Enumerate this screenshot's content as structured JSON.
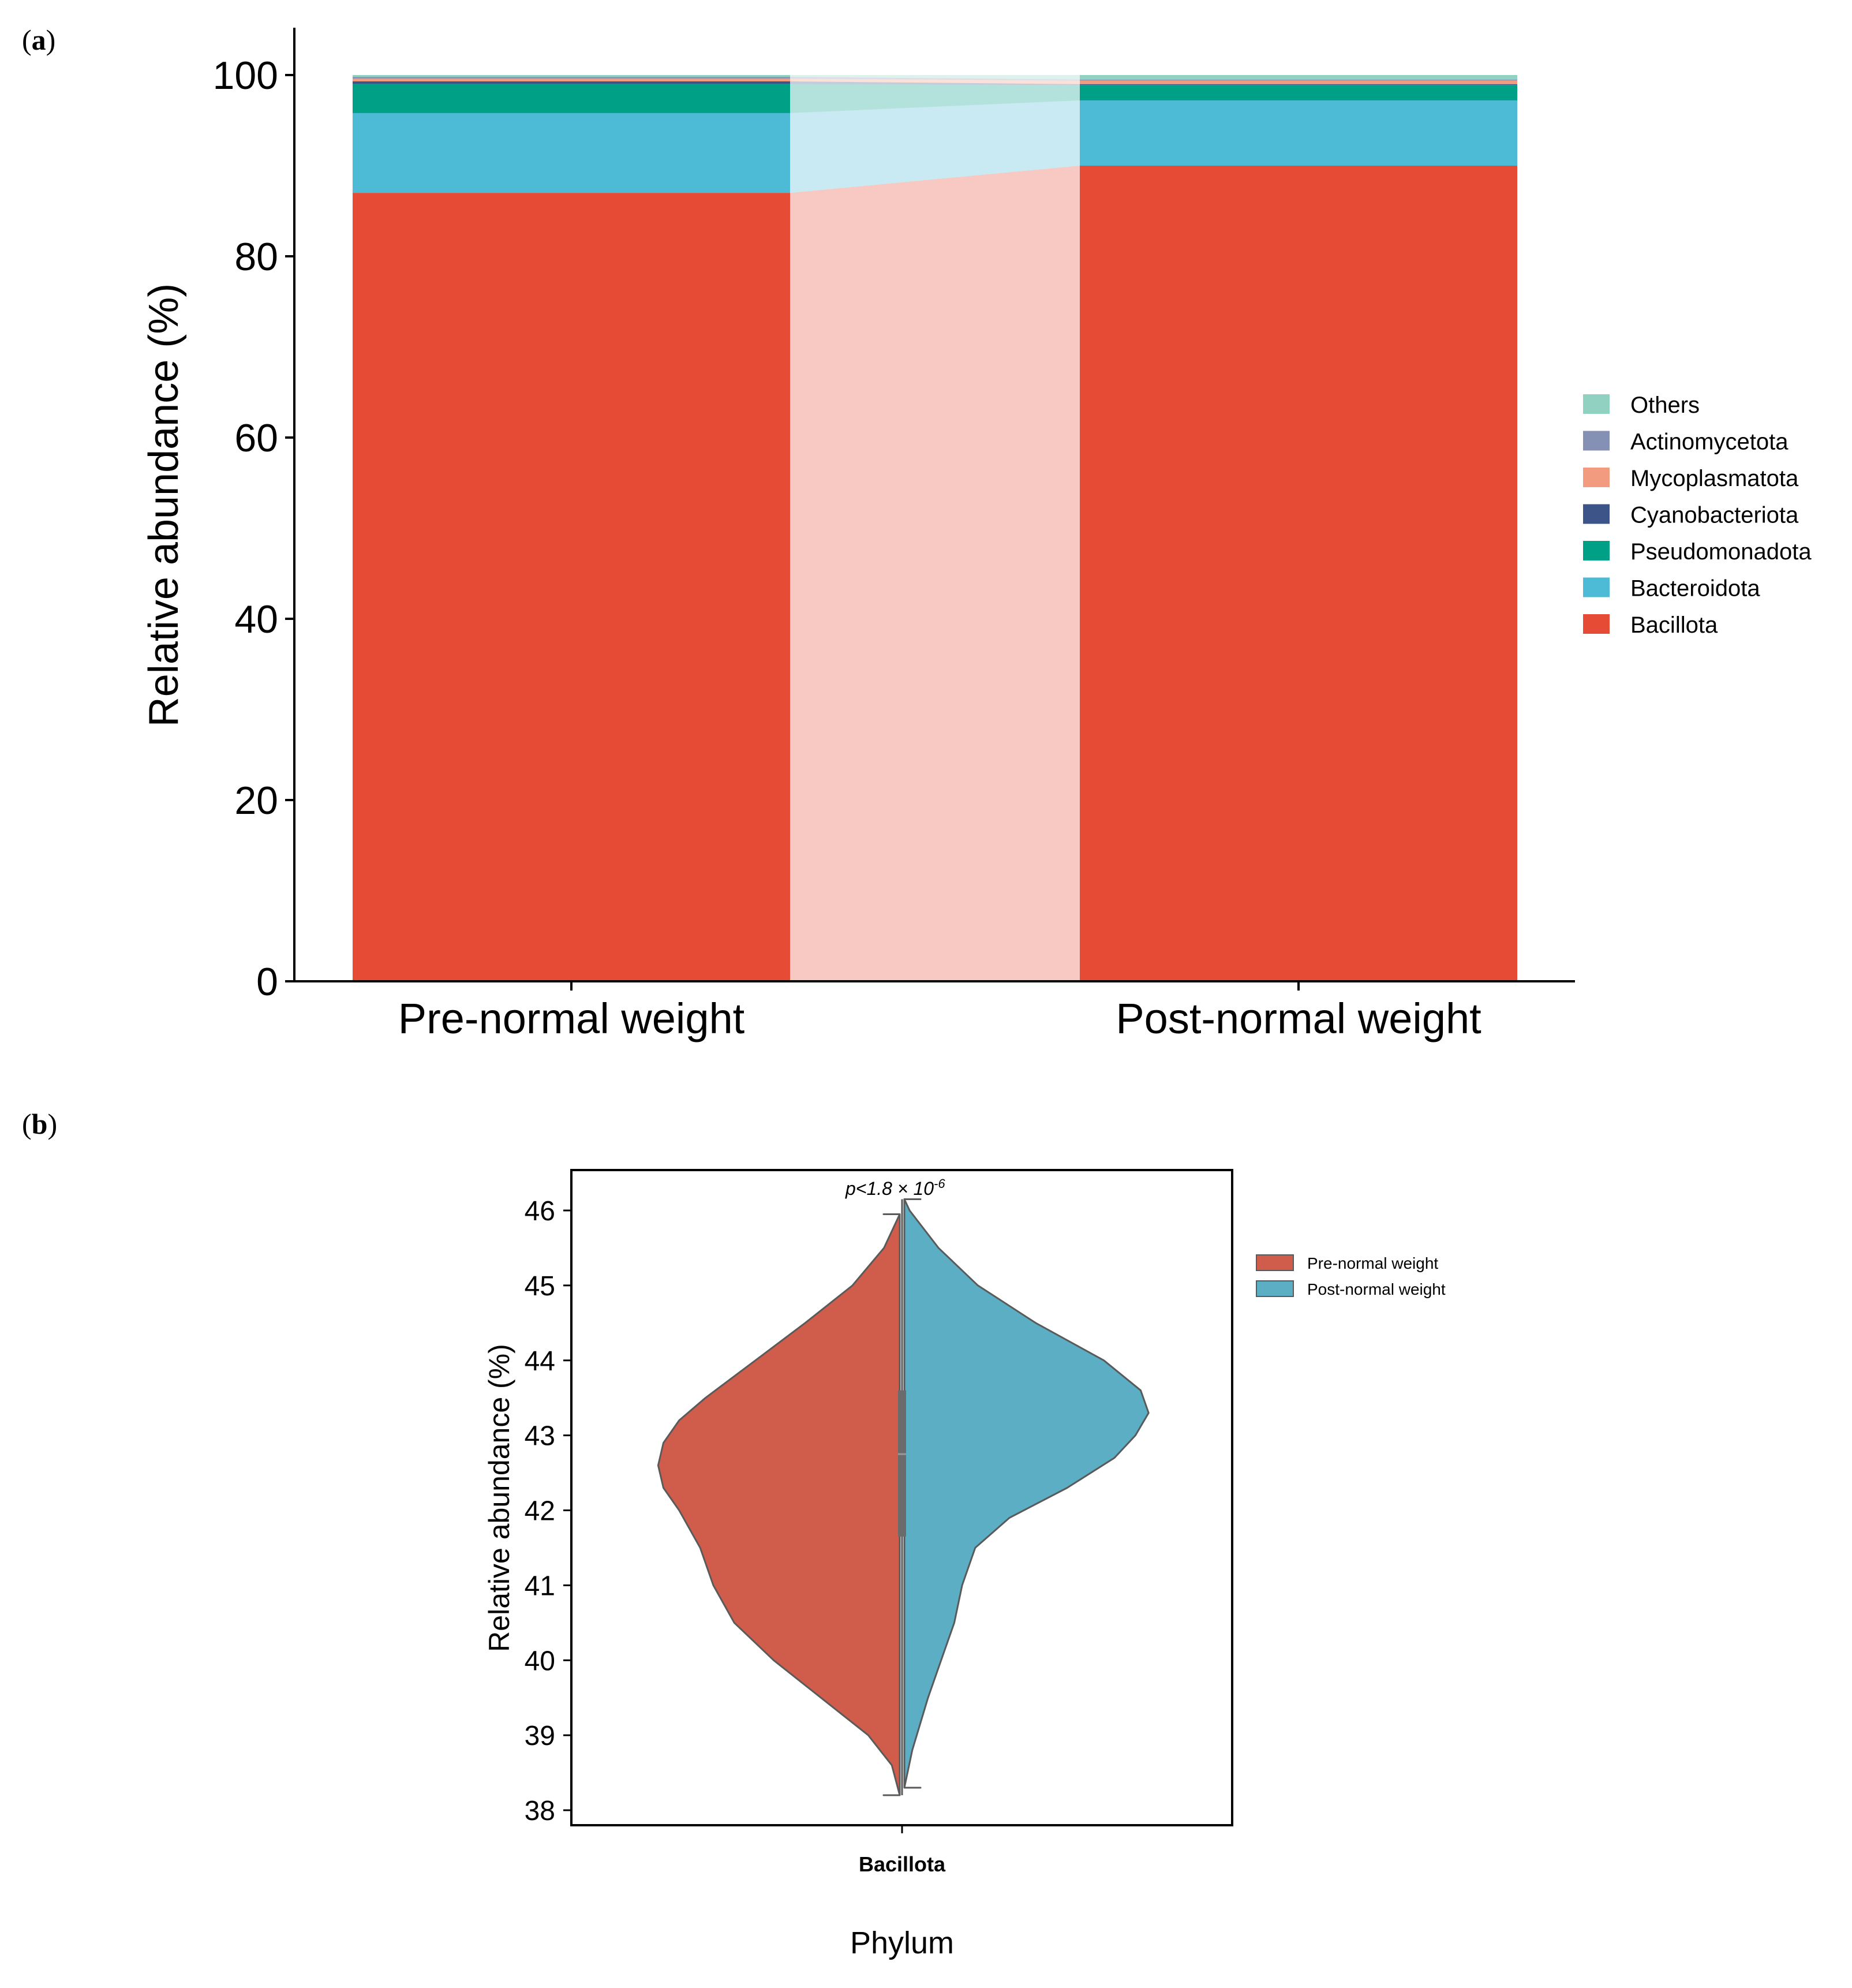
{
  "panel_labels": {
    "a": "a",
    "b": "b"
  },
  "chart_data": [
    {
      "type": "bar",
      "stacked": true,
      "panel": "a",
      "categories": [
        "Pre-normal weight",
        "Post-normal weight"
      ],
      "ylabel": "Relative abundance (%)",
      "ylim": [
        0,
        100
      ],
      "yticks": [
        "0",
        "20",
        "40",
        "60",
        "80",
        "100"
      ],
      "grid": false,
      "legend_position": "right",
      "flow_bands": true,
      "series": [
        {
          "name": "Bacillota",
          "color": "#E64B35",
          "values": [
            87.0,
            90.0
          ]
        },
        {
          "name": "Bacteroidota",
          "color": "#4DBBD5",
          "values": [
            8.8,
            7.2
          ]
        },
        {
          "name": "Pseudomonadota",
          "color": "#00A087",
          "values": [
            3.2,
            1.7
          ]
        },
        {
          "name": "Cyanobacteriota",
          "color": "#3C5488",
          "values": [
            0.3,
            0.1
          ]
        },
        {
          "name": "Mycoplasmatota",
          "color": "#F39B7F",
          "values": [
            0.3,
            0.4
          ]
        },
        {
          "name": "Actinomycetota",
          "color": "#8491B4",
          "values": [
            0.2,
            0.1
          ]
        },
        {
          "name": "Others",
          "color": "#91D1C2",
          "values": [
            0.2,
            0.5
          ]
        }
      ]
    },
    {
      "type": "violin",
      "panel": "b",
      "title": "p<1.8 × 10",
      "title_sup": "-6",
      "ylabel": "Relative abundance (%)",
      "xlabel": "Phylum",
      "x_category": "Bacillota",
      "ylim": [
        37.8,
        46.5
      ],
      "yticks": [
        "38",
        "39",
        "40",
        "41",
        "42",
        "43",
        "44",
        "45",
        "46"
      ],
      "legend_position": "top-right",
      "series": [
        {
          "name": "Pre-normal weight",
          "color": "#D05D4B",
          "side": "left",
          "range": [
            38.2,
            45.95
          ],
          "density": [
            [
              38.2,
              0.0
            ],
            [
              38.6,
              0.03
            ],
            [
              39.0,
              0.12
            ],
            [
              39.5,
              0.3
            ],
            [
              40.0,
              0.48
            ],
            [
              40.5,
              0.63
            ],
            [
              41.0,
              0.71
            ],
            [
              41.5,
              0.76
            ],
            [
              42.0,
              0.84
            ],
            [
              42.3,
              0.9
            ],
            [
              42.6,
              0.92
            ],
            [
              42.9,
              0.9
            ],
            [
              43.2,
              0.84
            ],
            [
              43.5,
              0.74
            ],
            [
              44.0,
              0.55
            ],
            [
              44.5,
              0.36
            ],
            [
              45.0,
              0.18
            ],
            [
              45.5,
              0.06
            ],
            [
              45.95,
              0.0
            ]
          ]
        },
        {
          "name": "Post-normal weight",
          "color": "#5BAEC3",
          "side": "right",
          "range": [
            38.3,
            46.15
          ],
          "density": [
            [
              38.3,
              0.0
            ],
            [
              38.8,
              0.03
            ],
            [
              39.5,
              0.09
            ],
            [
              40.0,
              0.14
            ],
            [
              40.5,
              0.19
            ],
            [
              41.0,
              0.22
            ],
            [
              41.5,
              0.27
            ],
            [
              41.9,
              0.4
            ],
            [
              42.3,
              0.62
            ],
            [
              42.7,
              0.8
            ],
            [
              43.0,
              0.88
            ],
            [
              43.3,
              0.93
            ],
            [
              43.6,
              0.9
            ],
            [
              44.0,
              0.76
            ],
            [
              44.5,
              0.5
            ],
            [
              45.0,
              0.28
            ],
            [
              45.5,
              0.13
            ],
            [
              46.0,
              0.02
            ],
            [
              46.15,
              0.0
            ]
          ]
        }
      ],
      "box": {
        "q1": 41.65,
        "median": 42.75,
        "q3": 43.6
      }
    }
  ]
}
